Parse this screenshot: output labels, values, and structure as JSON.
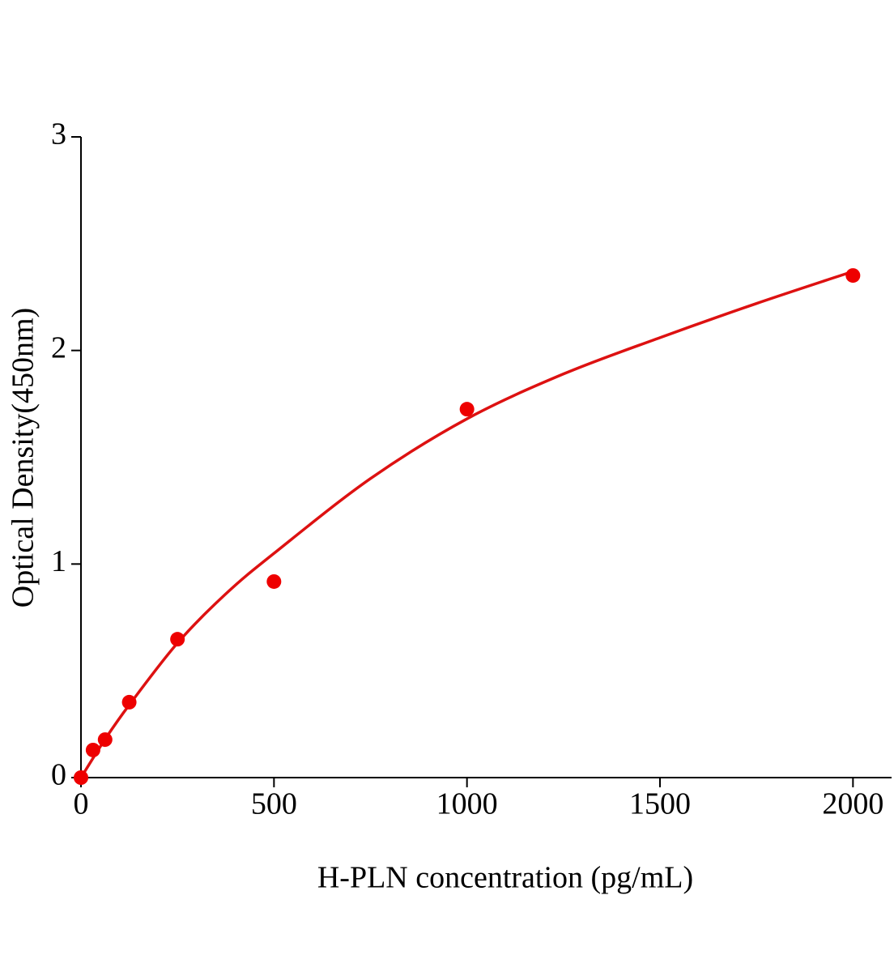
{
  "chart_data": {
    "type": "scatter",
    "x_label": "H-PLN concentration (pg/mL)",
    "y_label": "Optical Density(450nm)",
    "xlim": [
      0,
      2100
    ],
    "xticks": [
      0,
      500,
      1000,
      1500,
      2000
    ],
    "ylim": [
      0,
      3
    ],
    "yticks": [
      0,
      1,
      2,
      3
    ],
    "series": [
      {
        "type": "scatter",
        "color": "#ee0000",
        "x": [
          0,
          31.25,
          62.5,
          125,
          250,
          500,
          1000,
          2000
        ],
        "values": [
          0,
          0.129,
          0.178,
          0.353,
          0.648,
          0.918,
          1.725,
          2.351
        ]
      },
      {
        "type": "line",
        "color": "#dd1111",
        "x": [
          0,
          62.5,
          125,
          250,
          375,
          500,
          750,
          1000,
          1250,
          1500,
          1750,
          2000
        ],
        "values": [
          0,
          0.18,
          0.34,
          0.63,
          0.86,
          1.05,
          1.4,
          1.68,
          1.89,
          2.06,
          2.22,
          2.37
        ]
      }
    ]
  }
}
